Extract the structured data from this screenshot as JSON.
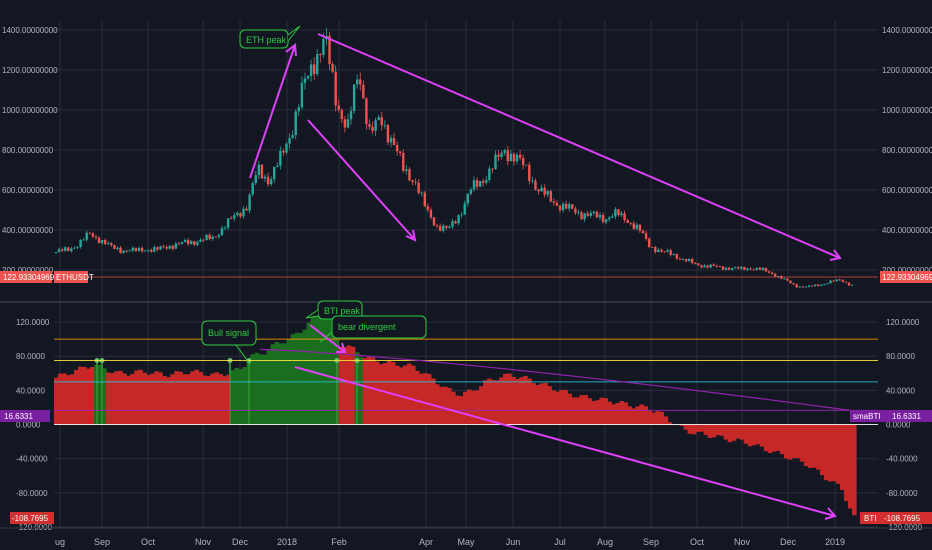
{
  "colors": {
    "background": "#131722",
    "grid": "#2a2e39",
    "axis_text": "#b2b5be",
    "candle_up": "#26a69a",
    "candle_down": "#ef5350",
    "bti_negative": "#c62828",
    "bti_positive": "#1b6e1f",
    "bull_bar": "#2e8b2e",
    "annotation_arrow": "#e040fb",
    "price_tag": "#ef5350",
    "sma_tag": "#7b1fa2",
    "callout_green": "#2ecc40"
  },
  "price_panel": {
    "symbol": "ETHUSDT",
    "last_price_label": "122.93304969",
    "axis_labels": [
      "1400.00000000",
      "1200.00000000",
      "1000.00000000",
      "800.00000000",
      "600.00000000",
      "400.00000000",
      "200.00000000"
    ]
  },
  "bti_panel": {
    "axis_labels": [
      "120.0000",
      "80.0000",
      "40.0000",
      "0.0000",
      "-40.0000",
      "-80.0000",
      "-120.0000"
    ],
    "sma_tag_label": "smaBTI",
    "sma_value": "16.6331",
    "bti_tag_label": "BTI",
    "bti_value": "-108.7695",
    "left_sma_value": "16.6331",
    "left_bti_value": "-108.7695"
  },
  "x_axis": {
    "labels": [
      "ug",
      "Sep",
      "Oct",
      "Nov",
      "Dec",
      "2018",
      "Feb",
      "Apr",
      "May",
      "Jun",
      "Jul",
      "Aug",
      "Sep",
      "Oct",
      "Nov",
      "Dec",
      "2019"
    ]
  },
  "annotations": {
    "eth_peak": "ETH peak",
    "bti_peak": "BTI peak",
    "bull_signal": "Bull signal",
    "bear_divergent": "bear divergent"
  },
  "chart_data": [
    {
      "type": "candlestick",
      "series_name": "ETHUSDT",
      "x_ticks": [
        "ug",
        "Sep",
        "Oct",
        "Nov",
        "Dec",
        "2018",
        "Feb",
        "Apr",
        "May",
        "Jun",
        "Jul",
        "Aug",
        "Sep",
        "Oct",
        "Nov",
        "Dec",
        "2019"
      ],
      "ylim": [
        60,
        1450
      ],
      "close_approx": [
        290,
        300,
        330,
        380,
        350,
        310,
        300,
        295,
        305,
        300,
        320,
        330,
        340,
        350,
        360,
        420,
        470,
        520,
        700,
        650,
        750,
        900,
        1100,
        1250,
        1350,
        1050,
        900,
        1200,
        880,
        950,
        850,
        700,
        650,
        500,
        420,
        400,
        480,
        600,
        650,
        720,
        800,
        760,
        700,
        600,
        560,
        520,
        500,
        480,
        470,
        460,
        480,
        450,
        400,
        320,
        290,
        280,
        250,
        230,
        220,
        215,
        210,
        205,
        210,
        200,
        180,
        150,
        120,
        115,
        125,
        140,
        150,
        123
      ],
      "last": 122.93304969
    },
    {
      "type": "area",
      "series_name": "BTI",
      "ylim": [
        -120,
        140
      ],
      "reference_lines": [
        100,
        75,
        50,
        16.6331,
        0
      ],
      "values_approx": [
        55,
        60,
        65,
        70,
        65,
        60,
        60,
        62,
        60,
        58,
        60,
        62,
        60,
        58,
        60,
        65,
        80,
        85,
        95,
        100,
        110,
        125,
        130,
        95,
        90,
        80,
        75,
        72,
        70,
        68,
        60,
        50,
        40,
        35,
        40,
        50,
        55,
        58,
        55,
        50,
        45,
        40,
        35,
        32,
        30,
        28,
        25,
        22,
        20,
        15,
        5,
        -5,
        -10,
        -12,
        -15,
        -18,
        -20,
        -25,
        -30,
        -35,
        -40,
        -45,
        -55,
        -65,
        -75,
        -108.7695
      ],
      "sma_last": 16.6331,
      "last": -108.7695
    }
  ]
}
